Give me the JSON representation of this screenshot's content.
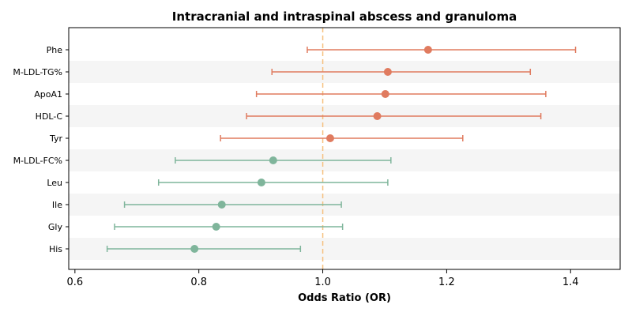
{
  "chart_data": {
    "type": "forest",
    "title": "Intracranial and intraspinal abscess and granuloma",
    "xlabel": "Odds Ratio (OR)",
    "ylabel": "",
    "xlim": [
      0.59,
      1.48
    ],
    "xticks": [
      0.6,
      0.8,
      1.0,
      1.2,
      1.4
    ],
    "xtick_labels": [
      "0.6",
      "0.8",
      "1.0",
      "1.2",
      "1.4"
    ],
    "reference_line": 1.0,
    "reference_line_color": "#f6c07e",
    "alternating_row_bands": true,
    "band_color": "#f5f5f5",
    "colors": {
      "risk": "#e07b5f",
      "protective": "#7fb59b"
    },
    "rows": [
      {
        "label": "Phe",
        "or": 1.17,
        "lower": 0.975,
        "upper": 1.408,
        "group": "risk"
      },
      {
        "label": "M-LDL-TG%",
        "or": 1.105,
        "lower": 0.918,
        "upper": 1.335,
        "group": "risk"
      },
      {
        "label": "ApoA1",
        "or": 1.101,
        "lower": 0.893,
        "upper": 1.36,
        "group": "risk"
      },
      {
        "label": "HDL-C",
        "or": 1.088,
        "lower": 0.877,
        "upper": 1.352,
        "group": "risk"
      },
      {
        "label": "Tyr",
        "or": 1.012,
        "lower": 0.835,
        "upper": 1.226,
        "group": "risk"
      },
      {
        "label": "M-LDL-FC%",
        "or": 0.92,
        "lower": 0.762,
        "upper": 1.11,
        "group": "protective"
      },
      {
        "label": "Leu",
        "or": 0.901,
        "lower": 0.735,
        "upper": 1.105,
        "group": "protective"
      },
      {
        "label": "Ile",
        "or": 0.837,
        "lower": 0.68,
        "upper": 1.03,
        "group": "protective"
      },
      {
        "label": "Gly",
        "or": 0.828,
        "lower": 0.664,
        "upper": 1.032,
        "group": "protective"
      },
      {
        "label": "His",
        "or": 0.793,
        "lower": 0.652,
        "upper": 0.964,
        "group": "protective"
      }
    ]
  }
}
